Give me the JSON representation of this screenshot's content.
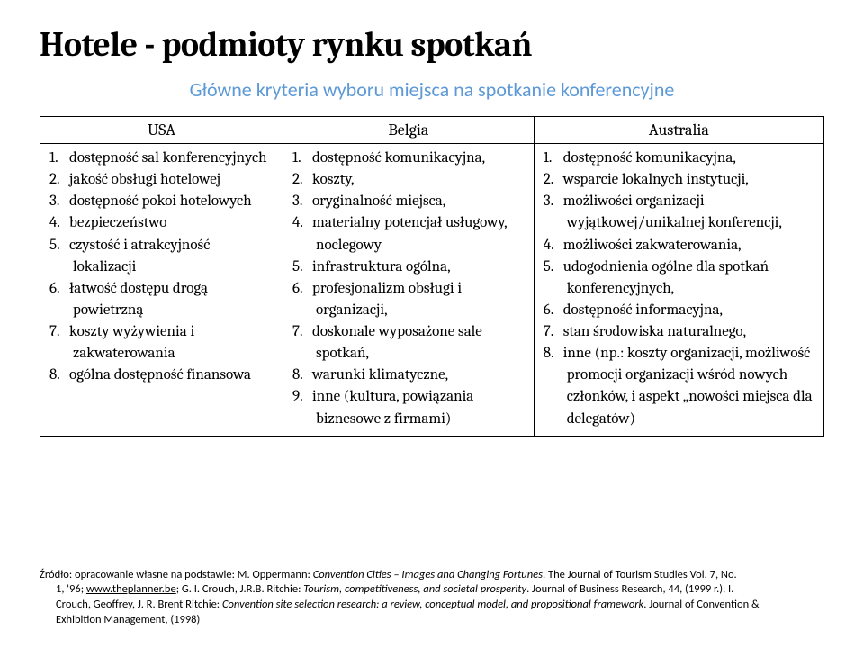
{
  "title": "Hotele - podmioty rynku spotkań",
  "subtitle": "Główne kryteria wyboru miejsca na spotkanie konferencyjne",
  "table": {
    "columns": [
      "USA",
      "Belgia",
      "Australia"
    ],
    "col_widths": [
      "31%",
      "32%",
      "37%"
    ],
    "header_fontsize": 18,
    "cell_fontsize": 17,
    "border_color": "#000000",
    "rows": [
      [
        "dostępność sal konferencyjnych",
        "jakość obsługi hotelowej",
        "dostępność pokoi hotelowych",
        "bezpieczeństwo",
        "czystość i atrakcyjność lokalizacji",
        "łatwość dostępu drogą powietrzną",
        "koszty wyżywienia i zakwaterowania",
        "ogólna dostępność finansowa"
      ],
      [
        "dostępność komunikacyjna,",
        "koszty,",
        "oryginalność miejsca,",
        "materialny potencjał usługowy, noclegowy",
        "infrastruktura ogólna,",
        "profesjonalizm obsługi i organizacji,",
        "doskonale wyposażone sale spotkań,",
        "warunki klimatyczne,",
        "inne (kultura, powiązania biznesowe z firmami)"
      ],
      [
        "dostępność komunikacyjna,",
        "wsparcie lokalnych instytucji,",
        "możliwości organizacji wyjątkowej/unikalnej konferencji,",
        "możliwości zakwaterowania,",
        "udogodnienia ogólne dla spotkań konferencyjnych,",
        "dostępność informacyjna,",
        "stan środowiska naturalnego,",
        "inne (np.: koszty organizacji, możliwość promocji organizacji wśród nowych członków, i aspekt „nowości miejsca dla delegatów)"
      ]
    ]
  },
  "colors": {
    "title": "#000000",
    "subtitle": "#5c99d6",
    "text": "#000000",
    "background": "#ffffff"
  },
  "source": {
    "prefix": "Źródło: opracowanie własne na podstawie: M. Oppermann: ",
    "cite1_italic": "Convention Cities – Images and Changing Fortunes",
    "mid1": ". The Journal of Tourism Studies Vol. 7, No.",
    "line2a": "1, '96; ",
    "link": "www.theplanner.be",
    "line2b": "; G. I. Crouch, J.R.B. Ritchie: ",
    "cite2_italic": "Tourism, competitiveness, and societal prosperity",
    "line2c": ". Journal of Business Research, 44, (1999 r.), I.",
    "line3a": "Crouch, Geoffrey, J. R. Brent Ritchie: ",
    "cite3_italic": "Convention site selection research: a review, conceptual model, and propositional framework",
    "line3b": ". Journal of Convention &",
    "line4": "Exhibition Management,  (1998)"
  }
}
